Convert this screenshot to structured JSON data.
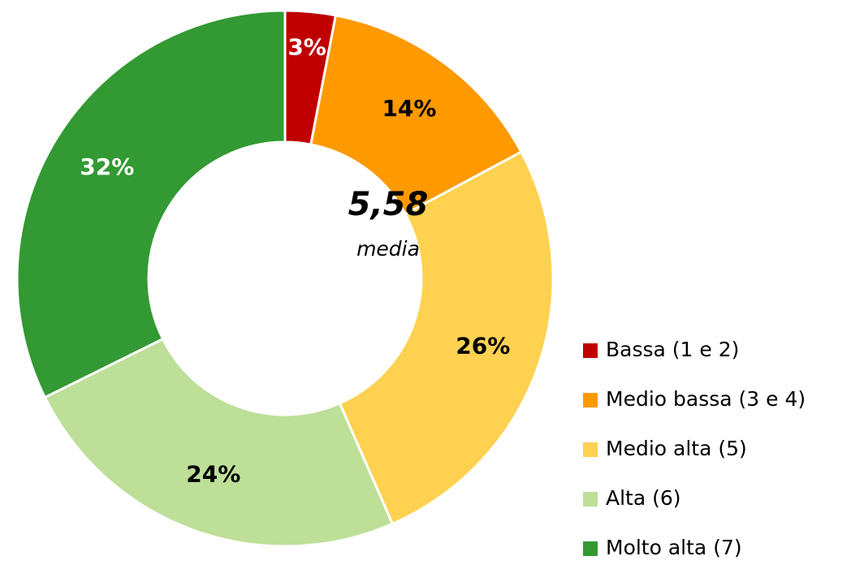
{
  "chart_data": {
    "type": "pie",
    "categories": [
      "Bassa (1 e 2)",
      "Medio bassa (3 e 4)",
      "Medio alta (5)",
      "Alta (6)",
      "Molto alta (7)"
    ],
    "values": [
      3,
      14,
      26,
      24,
      32
    ],
    "value_labels": [
      "3%",
      "14%",
      "26%",
      "24%",
      "32%"
    ],
    "colors": [
      "#c00000",
      "#ff9900",
      "#ffd150",
      "#bddf98",
      "#339933"
    ],
    "label_colors": [
      "#ffffff",
      "#000000",
      "#000000",
      "#000000",
      "#ffffff"
    ],
    "center_value": "5,58",
    "center_caption": "media",
    "legend": "right"
  }
}
